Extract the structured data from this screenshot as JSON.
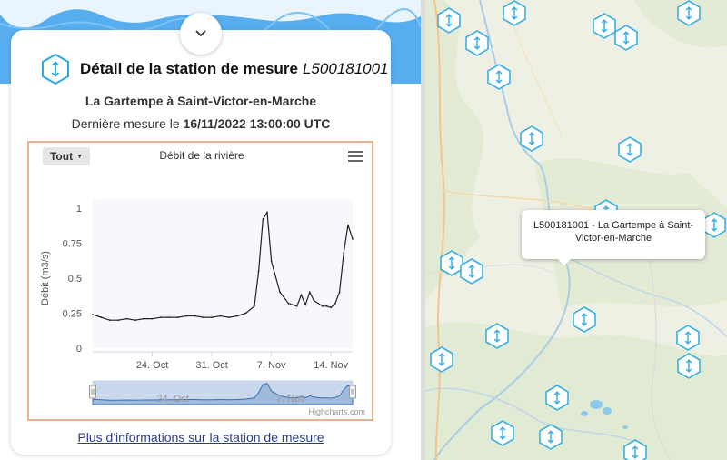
{
  "station": {
    "title_label": "Détail de la station de mesure",
    "code": "L500181001",
    "name": "La Gartempe à Saint-Victor-en-Marche",
    "last_measure_label": "Dernière mesure le",
    "last_measure_value": "16/11/2022 13:00:00 UTC"
  },
  "chart_controls": {
    "range_label": "Tout",
    "credits": "Highcharts.com"
  },
  "more_info_link": "Plus d'informations sur la station de mesure",
  "map_tooltip": {
    "line1": "L500181001 - La Gartempe à Saint-",
    "line2": "Victor-en-Marche"
  },
  "colors": {
    "accent_blue": "#2aa8e0",
    "sky": "#56aef0",
    "link": "#2c3b8f",
    "chart_border": "#e8b592"
  },
  "icons": [
    "chevron-down-icon",
    "station-hexagon-icon",
    "menu-icon",
    "caret-down-icon"
  ],
  "chart_data": {
    "type": "line",
    "title": "Débit de la rivière",
    "xlabel": "",
    "ylabel": "Débit (m3/s)",
    "ylim": [
      0,
      1
    ],
    "yticks": [
      "0",
      "0.25",
      "0.5",
      "0.75",
      "1"
    ],
    "xticks": [
      "24. Oct",
      "31. Oct",
      "7. Nov",
      "14. Nov"
    ],
    "navigator_labels": [
      "24. Oct",
      "7. Nov"
    ],
    "series": [
      {
        "x": [
          "2022-10-17",
          "2022-10-18",
          "2022-10-19",
          "2022-10-20",
          "2022-10-21",
          "2022-10-22",
          "2022-10-23",
          "2022-10-24",
          "2022-10-25",
          "2022-10-26",
          "2022-10-27",
          "2022-10-28",
          "2022-10-29",
          "2022-10-30",
          "2022-10-31",
          "2022-11-01",
          "2022-11-02",
          "2022-11-03",
          "2022-11-04",
          "2022-11-05",
          "2022-11-05T12:00",
          "2022-11-06",
          "2022-11-06T12:00",
          "2022-11-07",
          "2022-11-08",
          "2022-11-09",
          "2022-11-10",
          "2022-11-10T12:00",
          "2022-11-11",
          "2022-11-11T12:00",
          "2022-11-12",
          "2022-11-13",
          "2022-11-13T12:00",
          "2022-11-14",
          "2022-11-14T12:00",
          "2022-11-15",
          "2022-11-15T12:00",
          "2022-11-16",
          "2022-11-16T13:00"
        ],
        "values": [
          0.24,
          0.22,
          0.2,
          0.2,
          0.21,
          0.2,
          0.21,
          0.21,
          0.22,
          0.22,
          0.22,
          0.23,
          0.23,
          0.22,
          0.22,
          0.23,
          0.22,
          0.23,
          0.25,
          0.3,
          0.55,
          0.92,
          0.97,
          0.62,
          0.4,
          0.32,
          0.3,
          0.38,
          0.31,
          0.4,
          0.34,
          0.3,
          0.3,
          0.29,
          0.32,
          0.4,
          0.68,
          0.88,
          0.78
        ]
      }
    ]
  }
}
